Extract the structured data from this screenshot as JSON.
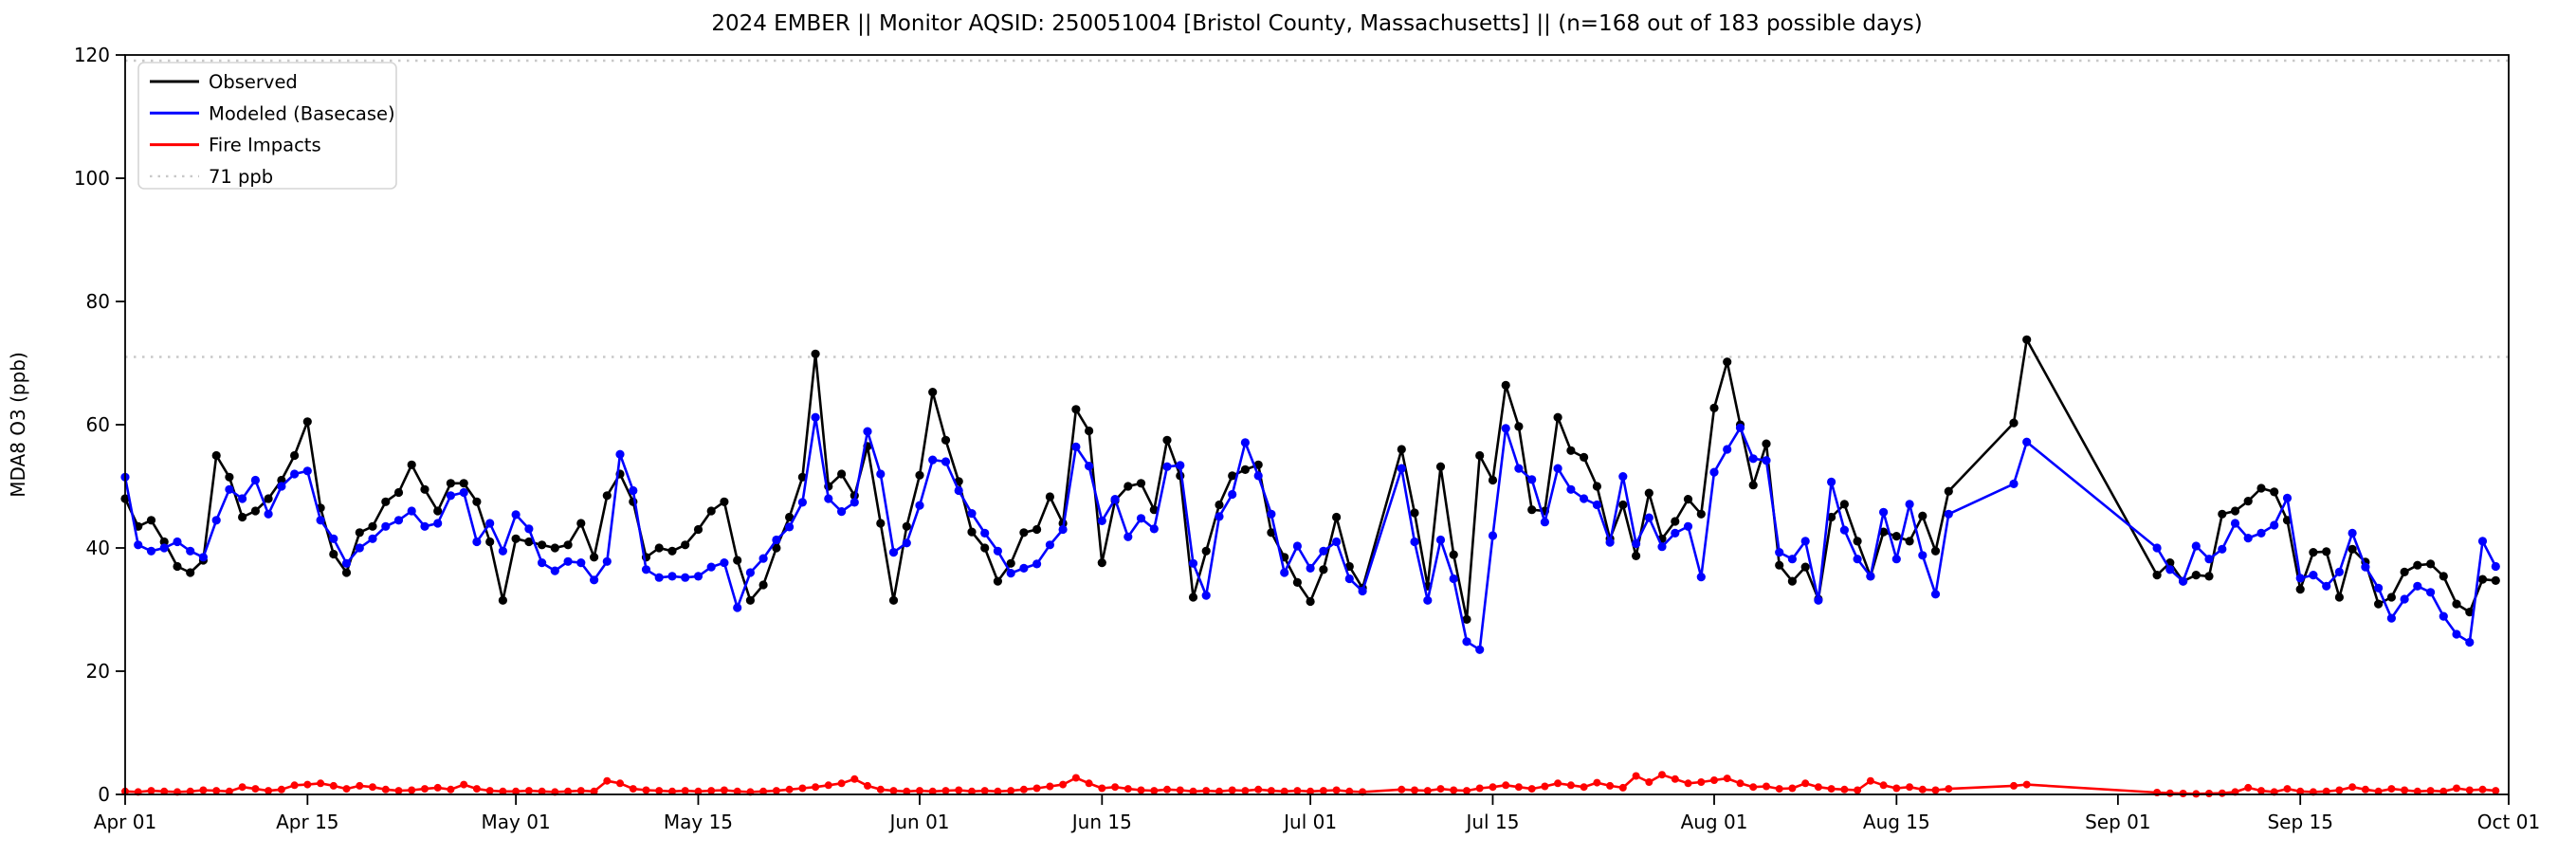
{
  "title": "2024 EMBER || Monitor AQSID: 250051004 [Bristol County, Massachusetts] || (n=168 out of 183 possible days)",
  "axes": {
    "ylabel": "MDA8 O3 (ppb)",
    "ylim": [
      0,
      120
    ],
    "yticks": [
      0,
      20,
      40,
      60,
      80,
      100,
      120
    ],
    "x_tick_labels": [
      "Apr 01",
      "Apr 15",
      "May 01",
      "May 15",
      "Jun 01",
      "Jun 15",
      "Jul 01",
      "Jul 15",
      "Aug 01",
      "Aug 15",
      "Sep 01",
      "Sep 15",
      "Oct 01"
    ],
    "x_tick_days": [
      0,
      14,
      30,
      44,
      61,
      75,
      91,
      105,
      122,
      136,
      153,
      167,
      183
    ]
  },
  "legend": {
    "items": [
      {
        "label": "Observed",
        "color": "#000000",
        "style": "solid"
      },
      {
        "label": "Modeled (Basecase)",
        "color": "#0000ff",
        "style": "solid"
      },
      {
        "label": "Fire Impacts",
        "color": "#ff0000",
        "style": "solid"
      },
      {
        "label": "71 ppb",
        "color": "#c8c8c8",
        "style": "dotted"
      }
    ]
  },
  "chart_data": {
    "type": "line",
    "x_start": "2024-04-01",
    "x_end": "2024-09-30",
    "n_possible_days": 183,
    "n_days_with_data": 168,
    "grid": false,
    "legend_position": "upper left",
    "reference_lines": [
      {
        "value": 71,
        "label": "71 ppb",
        "color": "#c8c8c8",
        "style": "dotted"
      },
      {
        "value": 120,
        "label": "",
        "color": "#c8c8c8",
        "style": "dotted"
      }
    ],
    "ylim": [
      0,
      120
    ],
    "series": [
      {
        "name": "Observed",
        "color": "#000000",
        "values": [
          48,
          43.5,
          44.5,
          41,
          37,
          36,
          38,
          55,
          51.5,
          45,
          46,
          48,
          51,
          55,
          60.5,
          46.5,
          39,
          36,
          42.5,
          43.5,
          47.5,
          49,
          53.5,
          49.5,
          46,
          50.5,
          50.5,
          47.5,
          41,
          31.5,
          41.5,
          41,
          40.5,
          40,
          40.5,
          44,
          38.5,
          48.5,
          52,
          47.5,
          38.5,
          40,
          39.5,
          40.5,
          43,
          46,
          47.5,
          38,
          31.5,
          34,
          40,
          45,
          51.5,
          71.5,
          50,
          52,
          48.5,
          56.5,
          44,
          31.5,
          43.5,
          51.8,
          65.3,
          57.5,
          50.8,
          42.6,
          40,
          34.6,
          37.5,
          42.5,
          43,
          48.3,
          44,
          62.5,
          59,
          37.6,
          47.7,
          50,
          50.5,
          46.2,
          57.5,
          51.7,
          32,
          39.5,
          47,
          51.7,
          52.7,
          53.5,
          42.5,
          38.5,
          34.4,
          31.3,
          36.5,
          45,
          37,
          33.5,
          null,
          null,
          56,
          45.7,
          33.8,
          53.2,
          38.9,
          28.4,
          55,
          51,
          66.4,
          59.7,
          46.2,
          46,
          61.2,
          55.8,
          54.7,
          50,
          41.5,
          47,
          38.7,
          48.9,
          41.5,
          44.3,
          47.9,
          45.5,
          62.7,
          70.2,
          60,
          50.2,
          56.9,
          37.2,
          34.6,
          36.9,
          31.7,
          45,
          47.1,
          41.1,
          35.4,
          42.6,
          41.9,
          41.1,
          45.2,
          39.5,
          49.2,
          null,
          null,
          null,
          null,
          60.3,
          73.8,
          null,
          null,
          null,
          null,
          null,
          null,
          null,
          null,
          null,
          35.6,
          37.6,
          34.6,
          35.6,
          35.4,
          45.5,
          46,
          47.6,
          49.7,
          49.1,
          44.5,
          33.3,
          39.3,
          39.4,
          32,
          39.8,
          37.7,
          30.9,
          32,
          36.1,
          37.2,
          37.4,
          35.4,
          30.9,
          29.6,
          34.9,
          34.7
        ]
      },
      {
        "name": "Modeled (Basecase)",
        "color": "#0000ff",
        "values": [
          51.5,
          40.5,
          39.5,
          40,
          41,
          39.5,
          38.5,
          44.5,
          49.5,
          48,
          51,
          45.5,
          50,
          52,
          52.5,
          44.5,
          41.5,
          37.5,
          40,
          41.5,
          43.5,
          44.5,
          46,
          43.5,
          44,
          48.5,
          49,
          41,
          44,
          39.5,
          45.4,
          43.1,
          37.6,
          36.3,
          37.8,
          37.6,
          34.8,
          37.8,
          55.2,
          49.3,
          36.5,
          35.2,
          35.4,
          35.2,
          35.4,
          36.9,
          37.6,
          30.3,
          36,
          38.3,
          41.3,
          43.4,
          47.4,
          61.2,
          48,
          45.9,
          47.4,
          58.9,
          52,
          39.3,
          40.8,
          46.9,
          54.3,
          54,
          49.3,
          45.6,
          42.4,
          39.5,
          35.9,
          36.7,
          37.4,
          40.5,
          43,
          56.4,
          53.3,
          44.4,
          47.9,
          41.8,
          44.8,
          43.1,
          53.2,
          53.4,
          37.5,
          32.3,
          45.1,
          48.7,
          57.1,
          51.7,
          45.5,
          36,
          40.3,
          36.7,
          39.5,
          41,
          35,
          33,
          null,
          null,
          52.9,
          41,
          31.5,
          41.3,
          35,
          24.8,
          23.5,
          42,
          59.4,
          52.9,
          51.1,
          44.2,
          52.9,
          49.5,
          48,
          47,
          40.9,
          51.6,
          40.7,
          44.9,
          40.2,
          42.4,
          43.5,
          35.3,
          52.3,
          56,
          59.5,
          54.5,
          54.2,
          39.3,
          38.2,
          41.1,
          31.5,
          50.7,
          42.9,
          38.2,
          35.4,
          45.8,
          38.2,
          47.1,
          38.8,
          32.5,
          45.5,
          null,
          null,
          null,
          null,
          50.4,
          57.2,
          null,
          null,
          null,
          null,
          null,
          null,
          null,
          null,
          null,
          40,
          36.5,
          34.6,
          40.3,
          38.2,
          39.8,
          44,
          41.6,
          42.4,
          43.7,
          48.1,
          35.1,
          35.6,
          33.8,
          36.1,
          42.4,
          36.9,
          33.5,
          28.6,
          31.7,
          33.8,
          32.8,
          28.9,
          26,
          24.7,
          41.1,
          37
        ]
      },
      {
        "name": "Fire Impacts",
        "color": "#ff0000",
        "values": [
          0.5,
          0.4,
          0.6,
          0.5,
          0.4,
          0.5,
          0.7,
          0.6,
          0.5,
          1.2,
          0.9,
          0.6,
          0.8,
          1.5,
          1.6,
          1.8,
          1.4,
          0.9,
          1.4,
          1.2,
          0.8,
          0.6,
          0.7,
          0.9,
          1.1,
          0.8,
          1.6,
          0.9,
          0.6,
          0.5,
          0.5,
          0.6,
          0.5,
          0.4,
          0.5,
          0.6,
          0.5,
          2.2,
          1.8,
          0.9,
          0.7,
          0.6,
          0.5,
          0.6,
          0.5,
          0.6,
          0.7,
          0.5,
          0.4,
          0.5,
          0.6,
          0.8,
          1,
          1.2,
          1.5,
          1.8,
          2.5,
          1.4,
          0.8,
          0.6,
          0.5,
          0.6,
          0.5,
          0.6,
          0.7,
          0.5,
          0.6,
          0.5,
          0.6,
          0.8,
          1,
          1.3,
          1.6,
          2.7,
          1.8,
          1,
          1.2,
          0.9,
          0.7,
          0.6,
          0.8,
          0.7,
          0.5,
          0.6,
          0.5,
          0.7,
          0.6,
          0.8,
          0.6,
          0.5,
          0.6,
          0.5,
          0.6,
          0.7,
          0.5,
          0.4,
          null,
          null,
          0.8,
          0.7,
          0.6,
          0.9,
          0.7,
          0.6,
          1,
          1.2,
          1.5,
          1.2,
          0.9,
          1.3,
          1.8,
          1.5,
          1.2,
          1.9,
          1.4,
          1.1,
          3,
          2,
          3.2,
          2.5,
          1.8,
          2,
          2.3,
          2.6,
          1.8,
          1.2,
          1.3,
          0.9,
          1,
          1.8,
          1.2,
          0.9,
          0.8,
          0.7,
          2.2,
          1.5,
          1,
          1.2,
          0.8,
          0.7,
          0.9,
          null,
          null,
          null,
          null,
          1.4,
          1.6,
          null,
          null,
          null,
          null,
          null,
          null,
          null,
          null,
          null,
          0.3,
          0.2,
          0.15,
          0.1,
          0.15,
          0.2,
          0.4,
          1.1,
          0.6,
          0.4,
          0.9,
          0.5,
          0.4,
          0.5,
          0.7,
          1.2,
          0.8,
          0.5,
          0.9,
          0.7,
          0.5,
          0.6,
          0.5,
          1,
          0.7,
          0.8,
          0.6
        ]
      }
    ]
  }
}
